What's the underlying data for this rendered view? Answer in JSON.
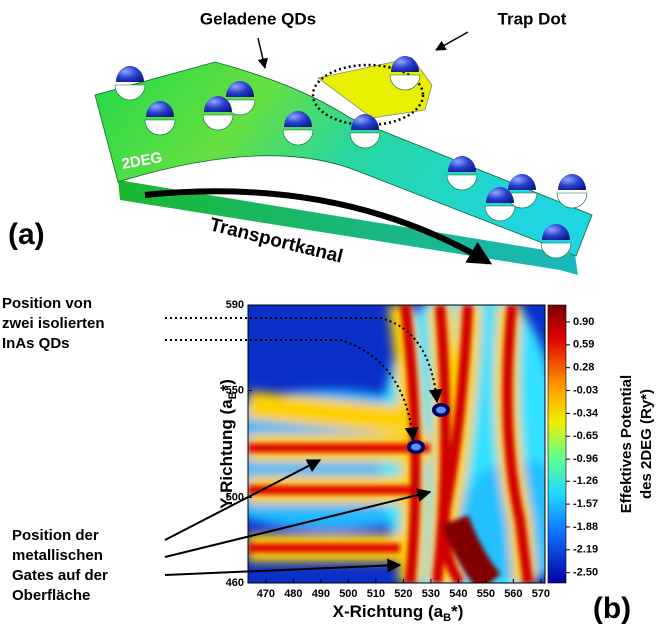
{
  "figure_a": {
    "panel": "(a)",
    "label_qds": "Geladene QDs",
    "label_trap": "Trap Dot",
    "label_2deg": "2DEG",
    "label_transport": "Transportkanal"
  },
  "chart_data": {
    "type": "contour",
    "panel": "(b)",
    "x_label": {
      "text": "X-Richtung (a",
      "sub": "B",
      "after": "*)"
    },
    "y_label": {
      "text": "Y-Richtung (a",
      "sub": "B",
      "after": "*)"
    },
    "xlim": [
      463.5,
      571.5
    ],
    "xticks": [
      470,
      480,
      490,
      500,
      510,
      520,
      530,
      540,
      550,
      560,
      570
    ],
    "ylim": [
      460,
      590
    ],
    "yticks": [
      460,
      500,
      550,
      590
    ],
    "colorbar": {
      "lim": [
        -2.64,
        1.13
      ],
      "title": [
        "Effektives Potential",
        "des 2DEG (Ry*)"
      ],
      "ticks": [
        {
          "value": 0.9,
          "label": "0.90"
        },
        {
          "value": 0.59,
          "label": "0.59"
        },
        {
          "value": 0.28,
          "label": "0.28"
        },
        {
          "value": -0.03,
          "label": "-0.03"
        },
        {
          "value": -0.34,
          "label": "-0.34"
        },
        {
          "value": -0.65,
          "label": "-0.65"
        },
        {
          "value": -0.96,
          "label": "-0.96"
        },
        {
          "value": -1.26,
          "label": "-1.26"
        },
        {
          "value": -1.57,
          "label": "-1.57"
        },
        {
          "value": -1.88,
          "label": "-1.88"
        },
        {
          "value": -2.19,
          "label": "-2.19"
        },
        {
          "value": -2.5,
          "label": "-2.50"
        }
      ]
    },
    "annotation_qds": [
      "Position von",
      "zwei isolierten",
      "InAs QDs"
    ],
    "annotation_gates": [
      "Position der",
      "metallischen",
      "Gates auf der",
      "Oberfläche"
    ]
  }
}
